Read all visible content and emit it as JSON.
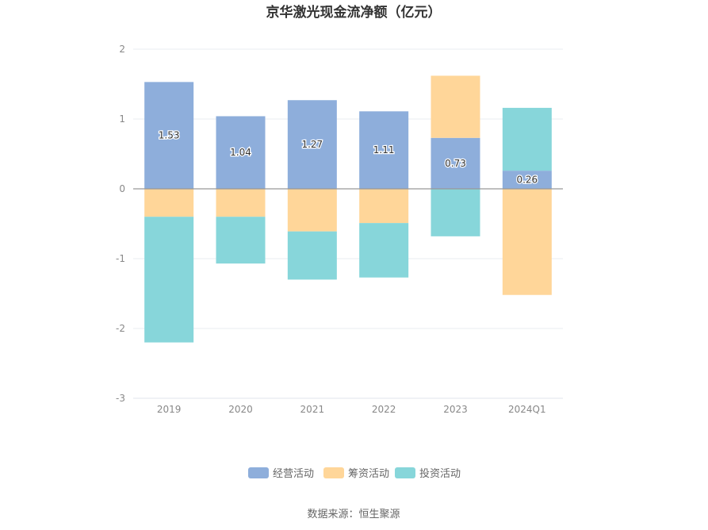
{
  "chart_data": {
    "type": "bar",
    "stacked": true,
    "title": "京华激光现金流净额（亿元）",
    "categories": [
      "2019",
      "2020",
      "2021",
      "2022",
      "2023",
      "2024Q1"
    ],
    "series": [
      {
        "name": "经营活动",
        "color": "#8eaedb",
        "values": [
          1.53,
          1.04,
          1.27,
          1.11,
          0.73,
          0.26
        ],
        "labels": [
          "1.53",
          "1.04",
          "1.27",
          "1.11",
          "0.73",
          "0.26"
        ]
      },
      {
        "name": "筹资活动",
        "color": "#ffd699",
        "values": [
          -0.4,
          -0.4,
          -0.61,
          -0.49,
          0.89,
          -1.52
        ]
      },
      {
        "name": "投资活动",
        "color": "#87d6da",
        "values": [
          -1.8,
          -0.67,
          -0.69,
          -0.78,
          -0.68,
          0.9
        ]
      }
    ],
    "ylim": [
      -3,
      2
    ],
    "yticks": [
      "2",
      "1",
      "0",
      "-1",
      "-2",
      "-3"
    ],
    "grid": true,
    "legend_position": "bottom"
  },
  "source": "数据来源：恒生聚源"
}
